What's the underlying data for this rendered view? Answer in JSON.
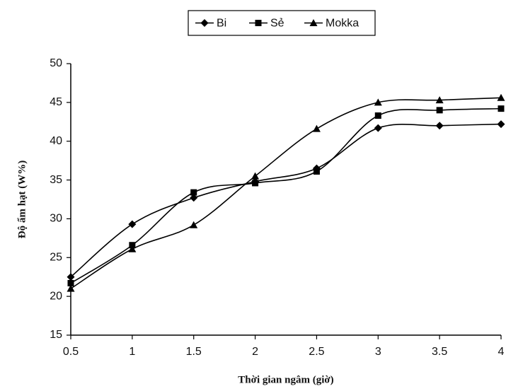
{
  "chart_data": {
    "type": "line",
    "x_label": "Thời gian ngâm (giờ)",
    "y_label": "Độ ẩm hạt (W%)",
    "x": [
      0.5,
      1,
      1.5,
      2,
      2.5,
      3,
      3.5,
      4
    ],
    "series": [
      {
        "name": "Bi",
        "color": "#000000",
        "marker": "diamond",
        "values": [
          22.5,
          29.3,
          32.7,
          34.8,
          36.5,
          41.7,
          42.0,
          42.2
        ]
      },
      {
        "name": "Sẻ",
        "color": "#000000",
        "marker": "square",
        "values": [
          21.7,
          26.6,
          33.4,
          34.6,
          36.1,
          43.3,
          44.0,
          44.2
        ]
      },
      {
        "name": "Mokka",
        "color": "#000000",
        "marker": "triangle",
        "values": [
          21.0,
          26.1,
          29.2,
          35.5,
          41.6,
          45.0,
          45.3,
          45.6
        ]
      }
    ],
    "xlim": [
      0.5,
      4
    ],
    "xticks": [
      0.5,
      1,
      1.5,
      2,
      2.5,
      3,
      3.5,
      4
    ],
    "ylim": [
      15,
      50
    ],
    "yticks": [
      15,
      20,
      25,
      30,
      35,
      40,
      45,
      50
    ],
    "grid": false,
    "smooth": true,
    "legend": "top"
  }
}
